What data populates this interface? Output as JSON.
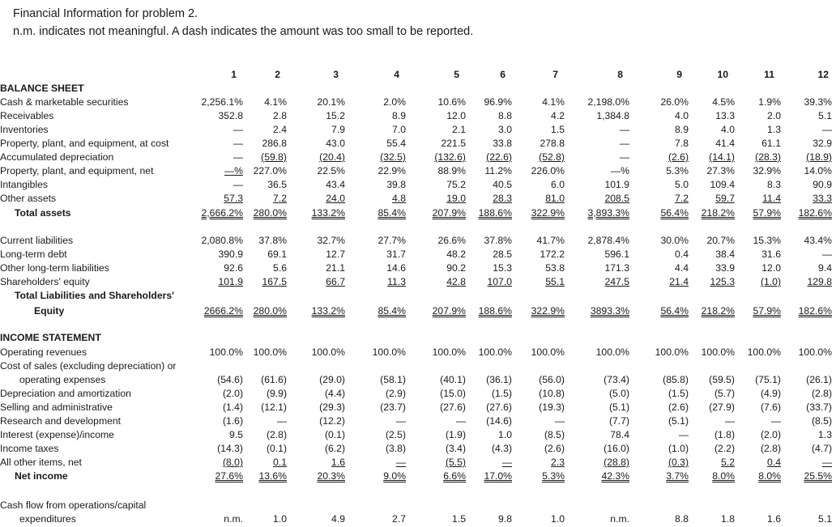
{
  "header": {
    "line1": "Financial Information for problem 2.",
    "line2": "n.m. indicates not meaningful. A dash indicates the amount was too small to be reported."
  },
  "columns": [
    "1",
    "2",
    "3",
    "4",
    "5",
    "6",
    "7",
    "8",
    "9",
    "10",
    "11",
    "12"
  ],
  "rows": [
    {
      "label": "BALANCE SHEET",
      "style": "head"
    },
    {
      "label": "Cash & marketable securities",
      "vals": [
        "2,256.1%",
        "4.1%",
        "20.1%",
        "2.0%",
        "10.6%",
        "96.9%",
        "4.1%",
        "2,198.0%",
        "26.0%",
        "4.5%",
        "1.9%",
        "39.3%"
      ]
    },
    {
      "label": "Receivables",
      "vals": [
        "352.8",
        "2.8",
        "15.2",
        "8.9",
        "12.0",
        "8.8",
        "4.2",
        "1,384.8",
        "4.0",
        "13.3",
        "2.0",
        "5.1"
      ]
    },
    {
      "label": "Inventories",
      "vals": [
        "—",
        "2.4",
        "7.9",
        "7.0",
        "2.1",
        "3.0",
        "1.5",
        "—",
        "8.9",
        "4.0",
        "1.3",
        "—"
      ]
    },
    {
      "label": "Property, plant, and equipment, at cost",
      "vals": [
        "—",
        "286.8",
        "43.0",
        "55.4",
        "221.5",
        "33.8",
        "278.8",
        "—",
        "7.8",
        "41.4",
        "61.1",
        "32.9"
      ]
    },
    {
      "label": "Accumulated depreciation",
      "vals": [
        "—",
        "(59.8)",
        "(20.4)",
        "(32.5)",
        "(132.6)",
        "(22.6)",
        "(52.8)",
        "—",
        "(2.6)",
        "(14.1)",
        "(28.3)",
        "(18.9)"
      ],
      "u": [
        0,
        1,
        1,
        1,
        1,
        1,
        1,
        0,
        1,
        1,
        1,
        1
      ]
    },
    {
      "label": "Property, plant, and equipment, net",
      "vals": [
        "—%",
        "227.0%",
        "22.5%",
        "22.9%",
        "88.9%",
        "11.2%",
        "226.0%",
        "—%",
        "5.3%",
        "27.3%",
        "32.9%",
        "14.0%"
      ],
      "u": [
        1,
        0,
        0,
        0,
        0,
        0,
        0,
        0,
        0,
        0,
        0,
        0
      ]
    },
    {
      "label": "Intangibles",
      "vals": [
        "—",
        "36.5",
        "43.4",
        "39.8",
        "75.2",
        "40.5",
        "6.0",
        "101.9",
        "5.0",
        "109.4",
        "8.3",
        "90.9"
      ]
    },
    {
      "label": "Other assets",
      "vals": [
        "57.3",
        "7.2",
        "24.0",
        "4.8",
        "19.0",
        "28.3",
        "81.0",
        "208.5",
        "7.2",
        "59.7",
        "11.4",
        "33.3"
      ],
      "u": [
        1,
        1,
        1,
        1,
        1,
        1,
        1,
        1,
        1,
        1,
        1,
        1
      ]
    },
    {
      "label": "Total assets",
      "style": "bold-indent",
      "vals": [
        "2,666.2%",
        "280.0%",
        "133.2%",
        "85.4%",
        "207.9%",
        "188.6%",
        "322.9%",
        "3,893.3%",
        "56.4%",
        "218.2%",
        "57.9%",
        "182.6%"
      ],
      "uu": true
    },
    {
      "label": "Current liabilities",
      "vals": [
        "2,080.8%",
        "37.8%",
        "32.7%",
        "27.7%",
        "26.6%",
        "37.8%",
        "41.7%",
        "2,878.4%",
        "30.0%",
        "20.7%",
        "15.3%",
        "43.4%"
      ]
    },
    {
      "label": "Long-term debt",
      "vals": [
        "390.9",
        "69.1",
        "12.7",
        "31.7",
        "48.2",
        "28.5",
        "172.2",
        "596.1",
        "0.4",
        "38.4",
        "31.6",
        "—"
      ]
    },
    {
      "label": "Other long-term liabilities",
      "vals": [
        "92.6",
        "5.6",
        "21.1",
        "14.6",
        "90.2",
        "15.3",
        "53.8",
        "171.3",
        "4.4",
        "33.9",
        "12.0",
        "9.4"
      ]
    },
    {
      "label": "Shareholders' equity",
      "vals": [
        "101.9",
        "167.5",
        "66.7",
        "11.3",
        "42.8",
        "107.0",
        "55.1",
        "247.5",
        "21.4",
        "125.3",
        "(1.0)",
        "129.8"
      ],
      "u": [
        1,
        1,
        1,
        1,
        1,
        1,
        1,
        1,
        1,
        1,
        1,
        1
      ]
    },
    {
      "label": "Total Liabilities and Shareholders'",
      "style": "bold-indent"
    },
    {
      "label": "Equity",
      "style": "bold-indent2",
      "vals": [
        "2666.2%",
        "280.0%",
        "133.2%",
        "85.4%",
        "207.9%",
        "188.6%",
        "322.9%",
        "3893.3%",
        "56.4%",
        "218.2%",
        "57.9%",
        "182.6%"
      ],
      "uu": true
    },
    {
      "label": "INCOME STATEMENT",
      "style": "head"
    },
    {
      "label": "Operating revenues",
      "vals": [
        "100.0%",
        "100.0%",
        "100.0%",
        "100.0%",
        "100.0%",
        "100.0%",
        "100.0%",
        "100.0%",
        "100.0%",
        "100.0%",
        "100.0%",
        "100.0%"
      ]
    },
    {
      "label": "Cost of sales (excluding depreciation) or"
    },
    {
      "label": "operating expenses",
      "style": "indent2",
      "vals": [
        "(54.6)",
        "(61.6)",
        "(29.0)",
        "(58.1)",
        "(40.1)",
        "(36.1)",
        "(56.0)",
        "(73.4)",
        "(85.8)",
        "(59.5)",
        "(75.1)",
        "(26.1)"
      ]
    },
    {
      "label": "Depreciation and amortization",
      "vals": [
        "(2.0)",
        "(9.9)",
        "(4.4)",
        "(2.9)",
        "(15.0)",
        "(1.5)",
        "(10.8)",
        "(5.0)",
        "(1.5)",
        "(5.7)",
        "(4.9)",
        "(2.8)"
      ]
    },
    {
      "label": "Selling and administrative",
      "vals": [
        "(1.4)",
        "(12.1)",
        "(29.3)",
        "(23.7)",
        "(27.6)",
        "(27.6)",
        "(19.3)",
        "(5.1)",
        "(2.6)",
        "(27.9)",
        "(7.6)",
        "(33.7)"
      ]
    },
    {
      "label": "Research and development",
      "vals": [
        "(1.6)",
        "—",
        "(12.2)",
        "—",
        "—",
        "(14.6)",
        "—",
        "(7.7)",
        "(5.1)",
        "—",
        "—",
        "(8.5)"
      ]
    },
    {
      "label": "Interest (expense)/income",
      "vals": [
        "9.5",
        "(2.8)",
        "(0.1)",
        "(2.5)",
        "(1.9)",
        "1.0",
        "(8.5)",
        "78.4",
        "—",
        "(1.8)",
        "(2.0)",
        "1.3"
      ]
    },
    {
      "label": "Income taxes",
      "vals": [
        "(14.3)",
        "(0.1)",
        "(6.2)",
        "(3.8)",
        "(3.4)",
        "(4.3)",
        "(2.6)",
        "(16.0)",
        "(1.0)",
        "(2.2)",
        "(2.8)",
        "(4.7)"
      ]
    },
    {
      "label": "All other items, net",
      "vals": [
        "(8.0)",
        "0.1",
        "1.6",
        "—",
        "(5.5)",
        "—",
        "2.3",
        "(28.8)",
        "(0.3)",
        "5.2",
        "0.4",
        "—"
      ],
      "u": [
        1,
        1,
        1,
        1,
        1,
        1,
        1,
        1,
        1,
        1,
        1,
        1
      ]
    },
    {
      "label": "Net income",
      "style": "bold-indent",
      "vals": [
        "27.6%",
        "13.6%",
        "20.3%",
        "9.0%",
        "6.6%",
        "17.0%",
        "5.3%",
        "42.3%",
        "3.7%",
        "8.0%",
        "8.0%",
        "25.5%"
      ],
      "uu": true
    },
    {
      "label": "Cash flow from operations/capital"
    },
    {
      "label": "expenditures",
      "style": "indent2",
      "vals": [
        "n.m.",
        "1.0",
        "4.9",
        "2.7",
        "1.5",
        "9.8",
        "1.0",
        "n.m.",
        "8.8",
        "1.8",
        "1.6",
        "5.1"
      ]
    }
  ]
}
